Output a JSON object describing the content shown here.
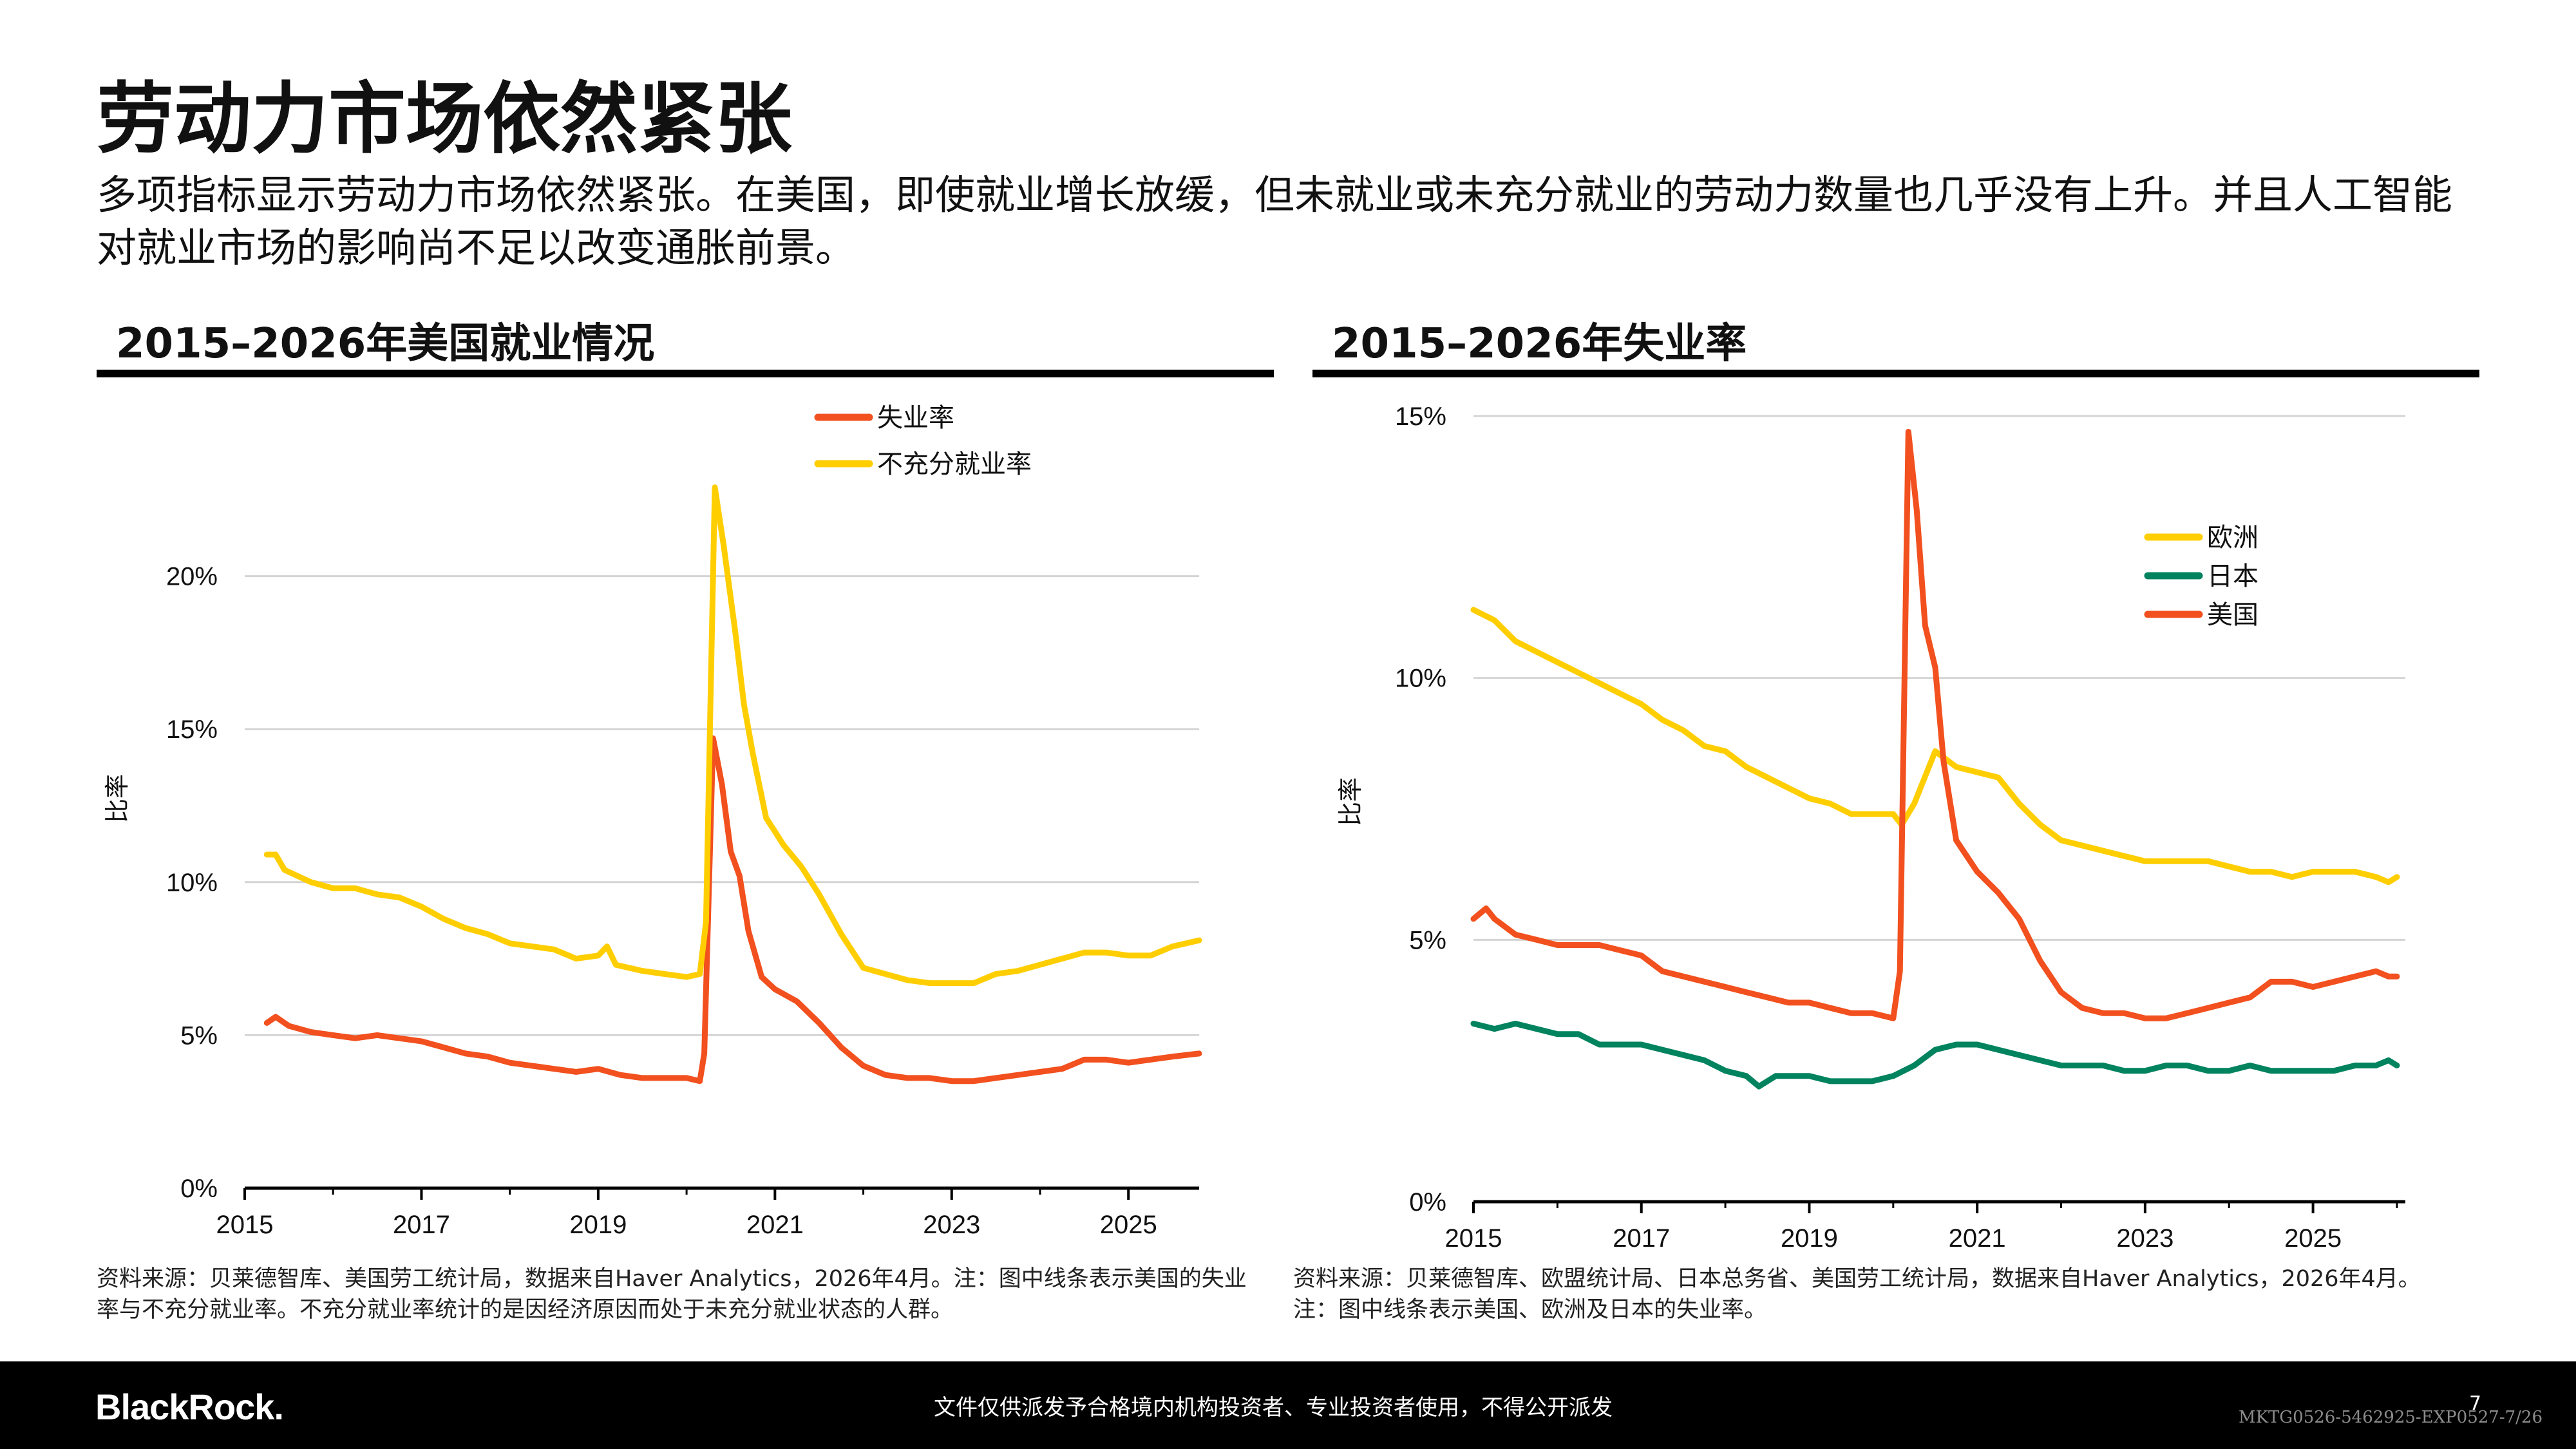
{
  "header": {
    "title": "劳动力市场依然紧张",
    "subtitle": "多项指标显示劳动力市场依然紧张。在美国，即使就业增长放缓，但未就业或未充分就业的劳动力数量也几乎没有上升。并且人工智能对就业市场的影响尚不足以改变通胀前景。"
  },
  "charts": {
    "left": {
      "panel_title": "2015–2026年美国就业情况",
      "source": "资料来源：贝莱德智库、美国劳工统计局，数据来自Haver Analytics，2026年4月。注：图中线条表示美国的失业率与不充分就业率。不充分就业率统计的是因经济原因而处于未充分就业状态的人群。"
    },
    "right": {
      "panel_title": "2015–2026年失业率",
      "source": "资料来源：贝莱德智库、欧盟统计局、日本总务省、美国劳工统计局，数据来自Haver Analytics，2026年4月。注：图中线条表示美国、欧洲及日本的失业率。"
    }
  },
  "chart_data": [
    {
      "type": "line",
      "title": "2015–2026年美国就业情况",
      "ylabel": "比率",
      "xlim": [
        2015,
        2025.8
      ],
      "ylim": [
        0,
        25
      ],
      "y_ticks": [
        0,
        5,
        10,
        15,
        20
      ],
      "y_tick_labels": [
        "0%",
        "5%",
        "10%",
        "15%",
        "20%"
      ],
      "x_ticks": [
        2015,
        2017,
        2019,
        2021,
        2023,
        2025
      ],
      "x_tick_labels": [
        "2015",
        "2017",
        "2019",
        "2021",
        "2023",
        "2025"
      ],
      "grid": true,
      "legend": "top-center",
      "series": [
        {
          "name": "失业率",
          "color": "#F2501E",
          "points": [
            [
              2015.25,
              5.4
            ],
            [
              2015.35,
              5.6
            ],
            [
              2015.5,
              5.3
            ],
            [
              2015.75,
              5.1
            ],
            [
              2016.0,
              5.0
            ],
            [
              2016.25,
              4.9
            ],
            [
              2016.5,
              5.0
            ],
            [
              2016.75,
              4.9
            ],
            [
              2017.0,
              4.8
            ],
            [
              2017.25,
              4.6
            ],
            [
              2017.5,
              4.4
            ],
            [
              2017.75,
              4.3
            ],
            [
              2018.0,
              4.1
            ],
            [
              2018.25,
              4.0
            ],
            [
              2018.5,
              3.9
            ],
            [
              2018.75,
              3.8
            ],
            [
              2019.0,
              3.9
            ],
            [
              2019.25,
              3.7
            ],
            [
              2019.5,
              3.6
            ],
            [
              2019.75,
              3.6
            ],
            [
              2020.0,
              3.6
            ],
            [
              2020.15,
              3.5
            ],
            [
              2020.2,
              4.4
            ],
            [
              2020.3,
              14.7
            ],
            [
              2020.4,
              13.2
            ],
            [
              2020.5,
              11.0
            ],
            [
              2020.6,
              10.2
            ],
            [
              2020.7,
              8.4
            ],
            [
              2020.85,
              6.9
            ],
            [
              2021.0,
              6.5
            ],
            [
              2021.25,
              6.1
            ],
            [
              2021.5,
              5.4
            ],
            [
              2021.75,
              4.6
            ],
            [
              2022.0,
              4.0
            ],
            [
              2022.25,
              3.7
            ],
            [
              2022.5,
              3.6
            ],
            [
              2022.75,
              3.6
            ],
            [
              2023.0,
              3.5
            ],
            [
              2023.25,
              3.5
            ],
            [
              2023.5,
              3.6
            ],
            [
              2023.75,
              3.7
            ],
            [
              2024.0,
              3.8
            ],
            [
              2024.25,
              3.9
            ],
            [
              2024.5,
              4.2
            ],
            [
              2024.75,
              4.2
            ],
            [
              2025.0,
              4.1
            ],
            [
              2025.25,
              4.2
            ],
            [
              2025.5,
              4.3
            ],
            [
              2025.8,
              4.4
            ]
          ]
        },
        {
          "name": "不充分就业率",
          "color": "#FFCE00",
          "points": [
            [
              2015.25,
              10.9
            ],
            [
              2015.35,
              10.9
            ],
            [
              2015.45,
              10.4
            ],
            [
              2015.75,
              10.0
            ],
            [
              2016.0,
              9.8
            ],
            [
              2016.25,
              9.8
            ],
            [
              2016.5,
              9.6
            ],
            [
              2016.75,
              9.5
            ],
            [
              2017.0,
              9.2
            ],
            [
              2017.25,
              8.8
            ],
            [
              2017.5,
              8.5
            ],
            [
              2017.75,
              8.3
            ],
            [
              2018.0,
              8.0
            ],
            [
              2018.25,
              7.9
            ],
            [
              2018.5,
              7.8
            ],
            [
              2018.75,
              7.5
            ],
            [
              2019.0,
              7.6
            ],
            [
              2019.1,
              7.9
            ],
            [
              2019.2,
              7.3
            ],
            [
              2019.5,
              7.1
            ],
            [
              2019.75,
              7.0
            ],
            [
              2020.0,
              6.9
            ],
            [
              2020.15,
              7.0
            ],
            [
              2020.22,
              8.7
            ],
            [
              2020.32,
              22.9
            ],
            [
              2020.42,
              21.0
            ],
            [
              2020.55,
              18.2
            ],
            [
              2020.65,
              15.8
            ],
            [
              2020.75,
              14.2
            ],
            [
              2020.9,
              12.1
            ],
            [
              2021.1,
              11.2
            ],
            [
              2021.3,
              10.5
            ],
            [
              2021.5,
              9.6
            ],
            [
              2021.75,
              8.3
            ],
            [
              2022.0,
              7.2
            ],
            [
              2022.25,
              7.0
            ],
            [
              2022.5,
              6.8
            ],
            [
              2022.75,
              6.7
            ],
            [
              2023.0,
              6.7
            ],
            [
              2023.25,
              6.7
            ],
            [
              2023.5,
              7.0
            ],
            [
              2023.75,
              7.1
            ],
            [
              2024.0,
              7.3
            ],
            [
              2024.25,
              7.5
            ],
            [
              2024.5,
              7.7
            ],
            [
              2024.75,
              7.7
            ],
            [
              2025.0,
              7.6
            ],
            [
              2025.25,
              7.6
            ],
            [
              2025.5,
              7.9
            ],
            [
              2025.8,
              8.1
            ]
          ]
        }
      ]
    },
    {
      "type": "line",
      "title": "2015–2026年失业率",
      "ylabel": "比率",
      "xlim": [
        2015,
        2026.1
      ],
      "ylim": [
        0,
        15
      ],
      "y_ticks": [
        0,
        5,
        10,
        15
      ],
      "y_tick_labels": [
        "0%",
        "5%",
        "10%",
        "15%"
      ],
      "x_ticks": [
        2015,
        2017,
        2019,
        2021,
        2023,
        2025
      ],
      "x_tick_labels": [
        "2015",
        "2017",
        "2019",
        "2021",
        "2023",
        "2025"
      ],
      "grid": true,
      "legend": "right",
      "series": [
        {
          "name": "欧洲",
          "color": "#FFCE00",
          "points": [
            [
              2015.0,
              11.3
            ],
            [
              2015.25,
              11.1
            ],
            [
              2015.5,
              10.7
            ],
            [
              2015.75,
              10.5
            ],
            [
              2016.0,
              10.3
            ],
            [
              2016.25,
              10.1
            ],
            [
              2016.5,
              9.9
            ],
            [
              2016.75,
              9.7
            ],
            [
              2017.0,
              9.5
            ],
            [
              2017.25,
              9.2
            ],
            [
              2017.5,
              9.0
            ],
            [
              2017.75,
              8.7
            ],
            [
              2018.0,
              8.6
            ],
            [
              2018.25,
              8.3
            ],
            [
              2018.5,
              8.1
            ],
            [
              2018.75,
              7.9
            ],
            [
              2019.0,
              7.7
            ],
            [
              2019.25,
              7.6
            ],
            [
              2019.5,
              7.4
            ],
            [
              2019.75,
              7.4
            ],
            [
              2020.0,
              7.4
            ],
            [
              2020.1,
              7.2
            ],
            [
              2020.25,
              7.6
            ],
            [
              2020.5,
              8.6
            ],
            [
              2020.75,
              8.3
            ],
            [
              2021.0,
              8.2
            ],
            [
              2021.25,
              8.1
            ],
            [
              2021.5,
              7.6
            ],
            [
              2021.75,
              7.2
            ],
            [
              2022.0,
              6.9
            ],
            [
              2022.25,
              6.8
            ],
            [
              2022.5,
              6.7
            ],
            [
              2022.75,
              6.6
            ],
            [
              2023.0,
              6.5
            ],
            [
              2023.25,
              6.5
            ],
            [
              2023.5,
              6.5
            ],
            [
              2023.75,
              6.5
            ],
            [
              2024.0,
              6.4
            ],
            [
              2024.25,
              6.3
            ],
            [
              2024.5,
              6.3
            ],
            [
              2024.75,
              6.2
            ],
            [
              2025.0,
              6.3
            ],
            [
              2025.25,
              6.3
            ],
            [
              2025.5,
              6.3
            ],
            [
              2025.75,
              6.2
            ],
            [
              2025.9,
              6.1
            ],
            [
              2026.0,
              6.2
            ]
          ]
        },
        {
          "name": "日本",
          "color": "#00835E",
          "points": [
            [
              2015.0,
              3.4
            ],
            [
              2015.25,
              3.3
            ],
            [
              2015.5,
              3.4
            ],
            [
              2015.75,
              3.3
            ],
            [
              2016.0,
              3.2
            ],
            [
              2016.25,
              3.2
            ],
            [
              2016.5,
              3.0
            ],
            [
              2016.75,
              3.0
            ],
            [
              2017.0,
              3.0
            ],
            [
              2017.25,
              2.9
            ],
            [
              2017.5,
              2.8
            ],
            [
              2017.75,
              2.7
            ],
            [
              2018.0,
              2.5
            ],
            [
              2018.25,
              2.4
            ],
            [
              2018.4,
              2.2
            ],
            [
              2018.6,
              2.4
            ],
            [
              2018.75,
              2.4
            ],
            [
              2019.0,
              2.4
            ],
            [
              2019.25,
              2.3
            ],
            [
              2019.5,
              2.3
            ],
            [
              2019.75,
              2.3
            ],
            [
              2020.0,
              2.4
            ],
            [
              2020.25,
              2.6
            ],
            [
              2020.5,
              2.9
            ],
            [
              2020.75,
              3.0
            ],
            [
              2021.0,
              3.0
            ],
            [
              2021.25,
              2.9
            ],
            [
              2021.5,
              2.8
            ],
            [
              2021.75,
              2.7
            ],
            [
              2022.0,
              2.6
            ],
            [
              2022.25,
              2.6
            ],
            [
              2022.5,
              2.6
            ],
            [
              2022.75,
              2.5
            ],
            [
              2023.0,
              2.5
            ],
            [
              2023.25,
              2.6
            ],
            [
              2023.5,
              2.6
            ],
            [
              2023.75,
              2.5
            ],
            [
              2024.0,
              2.5
            ],
            [
              2024.25,
              2.6
            ],
            [
              2024.5,
              2.5
            ],
            [
              2024.75,
              2.5
            ],
            [
              2025.0,
              2.5
            ],
            [
              2025.25,
              2.5
            ],
            [
              2025.5,
              2.6
            ],
            [
              2025.75,
              2.6
            ],
            [
              2025.9,
              2.7
            ],
            [
              2026.0,
              2.6
            ]
          ]
        },
        {
          "name": "美国",
          "color": "#F2501E",
          "points": [
            [
              2015.0,
              5.4
            ],
            [
              2015.15,
              5.6
            ],
            [
              2015.25,
              5.4
            ],
            [
              2015.5,
              5.1
            ],
            [
              2015.75,
              5.0
            ],
            [
              2016.0,
              4.9
            ],
            [
              2016.25,
              4.9
            ],
            [
              2016.5,
              4.9
            ],
            [
              2016.75,
              4.8
            ],
            [
              2017.0,
              4.7
            ],
            [
              2017.25,
              4.4
            ],
            [
              2017.5,
              4.3
            ],
            [
              2017.75,
              4.2
            ],
            [
              2018.0,
              4.1
            ],
            [
              2018.25,
              4.0
            ],
            [
              2018.5,
              3.9
            ],
            [
              2018.75,
              3.8
            ],
            [
              2019.0,
              3.8
            ],
            [
              2019.25,
              3.7
            ],
            [
              2019.5,
              3.6
            ],
            [
              2019.75,
              3.6
            ],
            [
              2020.0,
              3.5
            ],
            [
              2020.08,
              4.4
            ],
            [
              2020.18,
              14.7
            ],
            [
              2020.28,
              13.2
            ],
            [
              2020.38,
              11.0
            ],
            [
              2020.5,
              10.2
            ],
            [
              2020.6,
              8.4
            ],
            [
              2020.75,
              6.9
            ],
            [
              2021.0,
              6.3
            ],
            [
              2021.25,
              5.9
            ],
            [
              2021.5,
              5.4
            ],
            [
              2021.75,
              4.6
            ],
            [
              2022.0,
              4.0
            ],
            [
              2022.25,
              3.7
            ],
            [
              2022.5,
              3.6
            ],
            [
              2022.75,
              3.6
            ],
            [
              2023.0,
              3.5
            ],
            [
              2023.25,
              3.5
            ],
            [
              2023.5,
              3.6
            ],
            [
              2023.75,
              3.7
            ],
            [
              2024.0,
              3.8
            ],
            [
              2024.25,
              3.9
            ],
            [
              2024.5,
              4.2
            ],
            [
              2024.75,
              4.2
            ],
            [
              2025.0,
              4.1
            ],
            [
              2025.25,
              4.2
            ],
            [
              2025.5,
              4.3
            ],
            [
              2025.75,
              4.4
            ],
            [
              2025.9,
              4.3
            ],
            [
              2026.0,
              4.3
            ]
          ]
        }
      ]
    }
  ],
  "footer": {
    "logo": "BlackRock",
    "logo_dot": ".",
    "disclaimer": "文件仅供派发予合格境内机构投资者、专业投资者使用，不得公开派发",
    "page_number": "7",
    "doc_code": "MKTG0526-5462925-EXP0527-7/26"
  }
}
